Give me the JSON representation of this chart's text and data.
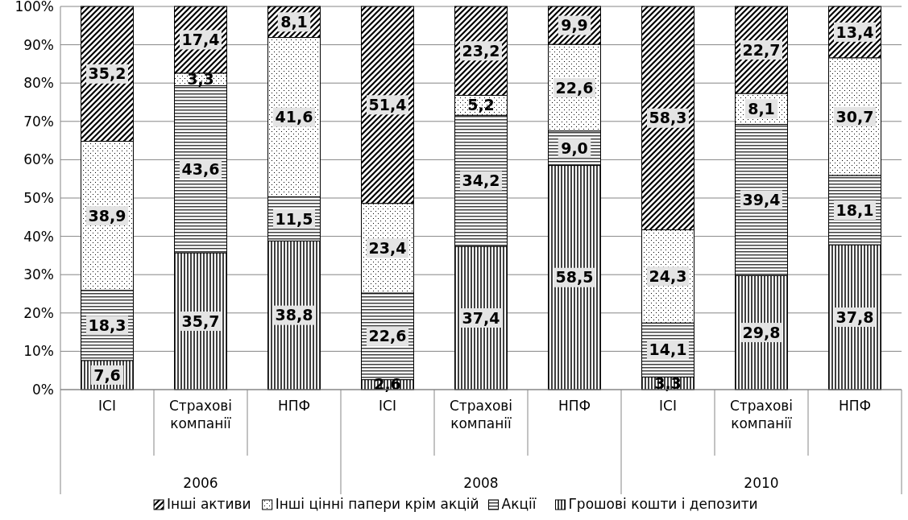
{
  "chart_data": {
    "type": "bar",
    "stacked": true,
    "categories": [
      "ІСІ",
      "Страхові компанії",
      "НПФ",
      "ІСІ",
      "Страхові компанії",
      "НПФ",
      "ІСІ",
      "Страхові компанії",
      "НПФ"
    ],
    "annotations": [
      "2006",
      "2008",
      "2010"
    ],
    "series": [
      {
        "name": "Грошові кошти і депозити",
        "color": "#000000",
        "values": [
          7.6,
          35.7,
          38.8,
          2.6,
          37.4,
          58.5,
          3.3,
          29.8,
          37.8
        ],
        "value_labels": [
          "7,6",
          "35,7",
          "38,8",
          "2,6",
          "37,4",
          "58,5",
          "3,3",
          "29,8",
          "37,8"
        ]
      },
      {
        "name": "Акції",
        "color": "#000000",
        "values": [
          18.3,
          43.6,
          11.5,
          22.6,
          34.2,
          9.0,
          14.1,
          39.4,
          18.1
        ],
        "value_labels": [
          "18,3",
          "43,6",
          "11,5",
          "22,6",
          "34,2",
          "9,0",
          "14,1",
          "39,4",
          "18,1"
        ]
      },
      {
        "name": "Інші цінні папери крім акцій",
        "color": "#000000",
        "values": [
          38.9,
          3.3,
          41.6,
          23.4,
          5.2,
          22.6,
          24.3,
          8.1,
          30.7
        ],
        "value_labels": [
          "38,9",
          "3,3",
          "41,6",
          "23,4",
          "5,2",
          "22,6",
          "24,3",
          "8,1",
          "30,7"
        ]
      },
      {
        "name": "Інші активи",
        "color": "#000000",
        "values": [
          35.2,
          17.4,
          8.1,
          51.4,
          23.2,
          9.9,
          58.3,
          22.7,
          13.4
        ],
        "value_labels": [
          "35,2",
          "17,4",
          "8,1",
          "51,4",
          "23,2",
          "9,9",
          "58,3",
          "22,7",
          "13,4"
        ]
      }
    ],
    "ylim": [
      0,
      100
    ],
    "yticks": [
      {
        "value": 0,
        "label": "0%"
      },
      {
        "value": 10,
        "label": "10%"
      },
      {
        "value": 20,
        "label": "20%"
      },
      {
        "value": 30,
        "label": "30%"
      },
      {
        "value": 40,
        "label": "40%"
      },
      {
        "value": 50,
        "label": "50%"
      },
      {
        "value": 60,
        "label": "60%"
      },
      {
        "value": 70,
        "label": "70%"
      },
      {
        "value": 80,
        "label": "80%"
      },
      {
        "value": 90,
        "label": "90%"
      },
      {
        "value": 100,
        "label": "100%"
      }
    ],
    "grid": "y",
    "legend": "bottom"
  }
}
